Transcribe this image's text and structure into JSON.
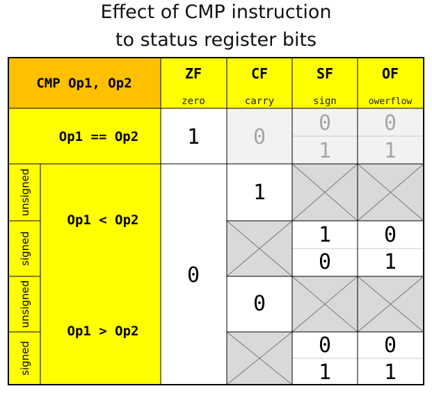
{
  "title": [
    "Effect of CMP instruction",
    "to status register bits"
  ],
  "header": {
    "corner": "CMP Op1, Op2",
    "flags": [
      {
        "name": "ZF",
        "desc": "zero"
      },
      {
        "name": "CF",
        "desc": "carry"
      },
      {
        "name": "SF",
        "desc": "sign"
      },
      {
        "name": "OF",
        "desc": "owerflow"
      }
    ]
  },
  "rows": {
    "equal": {
      "label": "Op1 == Op2",
      "zf": "1",
      "cf": "0",
      "sf": [
        "0",
        "1"
      ],
      "of": [
        "0",
        "1"
      ]
    },
    "less": {
      "label": "Op1 < Op2",
      "unsigned": {
        "side": "unsigned",
        "cf": "1"
      },
      "signed": {
        "side": "signed",
        "sf": [
          "1",
          "0"
        ],
        "of": [
          "0",
          "1"
        ]
      }
    },
    "greater": {
      "label": "Op1 > Op2",
      "unsigned": {
        "side": "unsigned",
        "cf": "0"
      },
      "signed": {
        "side": "signed",
        "sf": [
          "0",
          "1"
        ],
        "of": [
          "0",
          "1"
        ]
      }
    },
    "zf_not_equal": "0"
  },
  "colors": {
    "orange": "#ffc000",
    "yellow": "#ffff00",
    "gray": "#d9d9d9",
    "light_gray": "#f2f2f2",
    "dim_text": "#a6a6a6"
  }
}
